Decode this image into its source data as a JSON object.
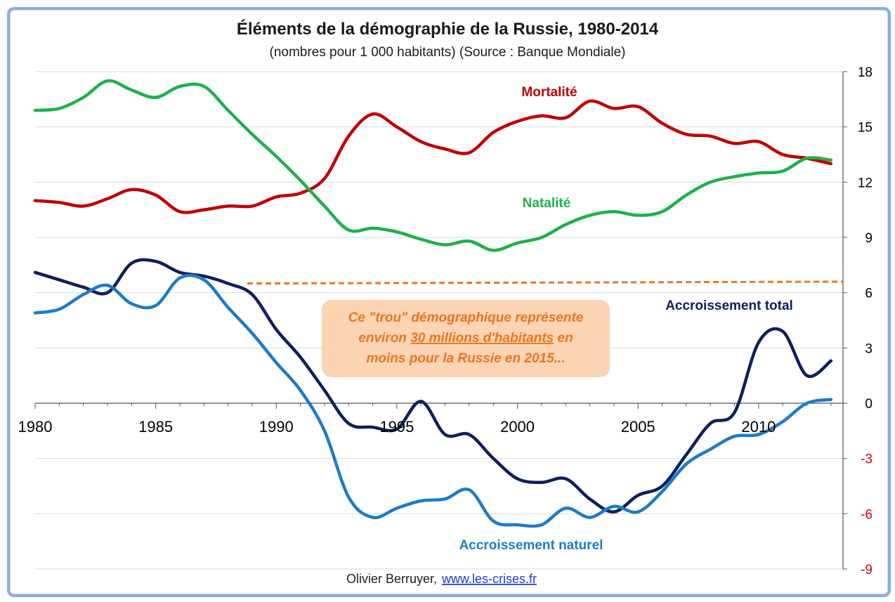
{
  "chart_data": {
    "type": "line",
    "title": "Éléments de la démographie de la Russie, 1980-2014",
    "subtitle": "(nombres pour 1 000 habitants) (Source : Banque Mondiale)",
    "x": [
      1980,
      1981,
      1982,
      1983,
      1984,
      1985,
      1986,
      1987,
      1988,
      1989,
      1990,
      1991,
      1992,
      1993,
      1994,
      1995,
      1996,
      1997,
      1998,
      1999,
      2000,
      2001,
      2002,
      2003,
      2004,
      2005,
      2006,
      2007,
      2008,
      2009,
      2010,
      2011,
      2012,
      2013
    ],
    "xlim": [
      1980,
      2013.5
    ],
    "ylim": [
      -9,
      18
    ],
    "x_ticks": [
      "1980",
      "1985",
      "1990",
      "1995",
      "2000",
      "2005",
      "2010"
    ],
    "y_ticks": [
      "18",
      "15",
      "12",
      "9",
      "6",
      "3",
      "0",
      "-3",
      "-6",
      "-9"
    ],
    "y_axis_position": "right",
    "grid": "horizontal",
    "series": [
      {
        "name": "Mortalité",
        "color": "#c00000",
        "values": [
          11.0,
          10.9,
          10.7,
          11.1,
          11.6,
          11.3,
          10.4,
          10.5,
          10.7,
          10.7,
          11.2,
          11.4,
          12.2,
          14.5,
          15.7,
          15.0,
          14.2,
          13.8,
          13.6,
          14.7,
          15.3,
          15.6,
          15.5,
          16.4,
          16.0,
          16.1,
          15.2,
          14.6,
          14.5,
          14.1,
          14.2,
          13.5,
          13.3,
          13.0
        ]
      },
      {
        "name": "Natalité",
        "color": "#1fb04a",
        "values": [
          15.9,
          16.0,
          16.6,
          17.5,
          17.0,
          16.6,
          17.2,
          17.2,
          15.9,
          14.6,
          13.4,
          12.1,
          10.7,
          9.4,
          9.5,
          9.3,
          8.9,
          8.6,
          8.8,
          8.3,
          8.7,
          9.0,
          9.7,
          10.2,
          10.4,
          10.2,
          10.4,
          11.3,
          12.0,
          12.3,
          12.5,
          12.6,
          13.3,
          13.2
        ]
      },
      {
        "name": "Accroissement total",
        "color": "#0f1f5c",
        "values": [
          7.1,
          6.7,
          6.3,
          6.0,
          7.6,
          7.7,
          7.1,
          6.9,
          6.5,
          5.9,
          4.0,
          2.5,
          0.7,
          -1.1,
          -1.3,
          -1.4,
          0.1,
          -1.7,
          -1.7,
          -3.0,
          -4.1,
          -4.3,
          -4.1,
          -5.2,
          -5.9,
          -5.0,
          -4.5,
          -2.8,
          -1.1,
          -0.5,
          3.3,
          3.9,
          1.5,
          2.3
        ]
      },
      {
        "name": "Accroissement naturel",
        "color": "#1f7ac8",
        "values": [
          4.9,
          5.1,
          5.9,
          6.4,
          5.4,
          5.3,
          6.8,
          6.7,
          5.2,
          3.8,
          2.2,
          0.7,
          -1.5,
          -5.1,
          -6.2,
          -5.7,
          -5.3,
          -5.2,
          -4.7,
          -6.4,
          -6.6,
          -6.6,
          -5.7,
          -6.2,
          -5.6,
          -5.9,
          -4.8,
          -3.3,
          -2.5,
          -1.8,
          -1.7,
          -1.0,
          0.0,
          0.2
        ]
      }
    ],
    "reference_line": {
      "color": "#e8761f",
      "x_start": 1988.8,
      "x_end": 2013.5,
      "y_start": 6.5,
      "y_end": 6.6
    },
    "annotation": {
      "line1": "Ce \"trou\" démographique représente",
      "line2_before": "environ ",
      "line2_underlined": "30 millions d'habitants",
      "line2_after": " en",
      "line3": "moins pour la Russie en 2015...",
      "background": "#fbd4b4"
    },
    "series_labels": {
      "mortalite": "Mortalité",
      "natalite": "Natalité",
      "accroissement_total": "Accroissement total",
      "accroissement_naturel": "Accroissement naturel"
    }
  },
  "credit": {
    "author": "Olivier Berruyer,",
    "link": "www.les-crises.fr"
  }
}
